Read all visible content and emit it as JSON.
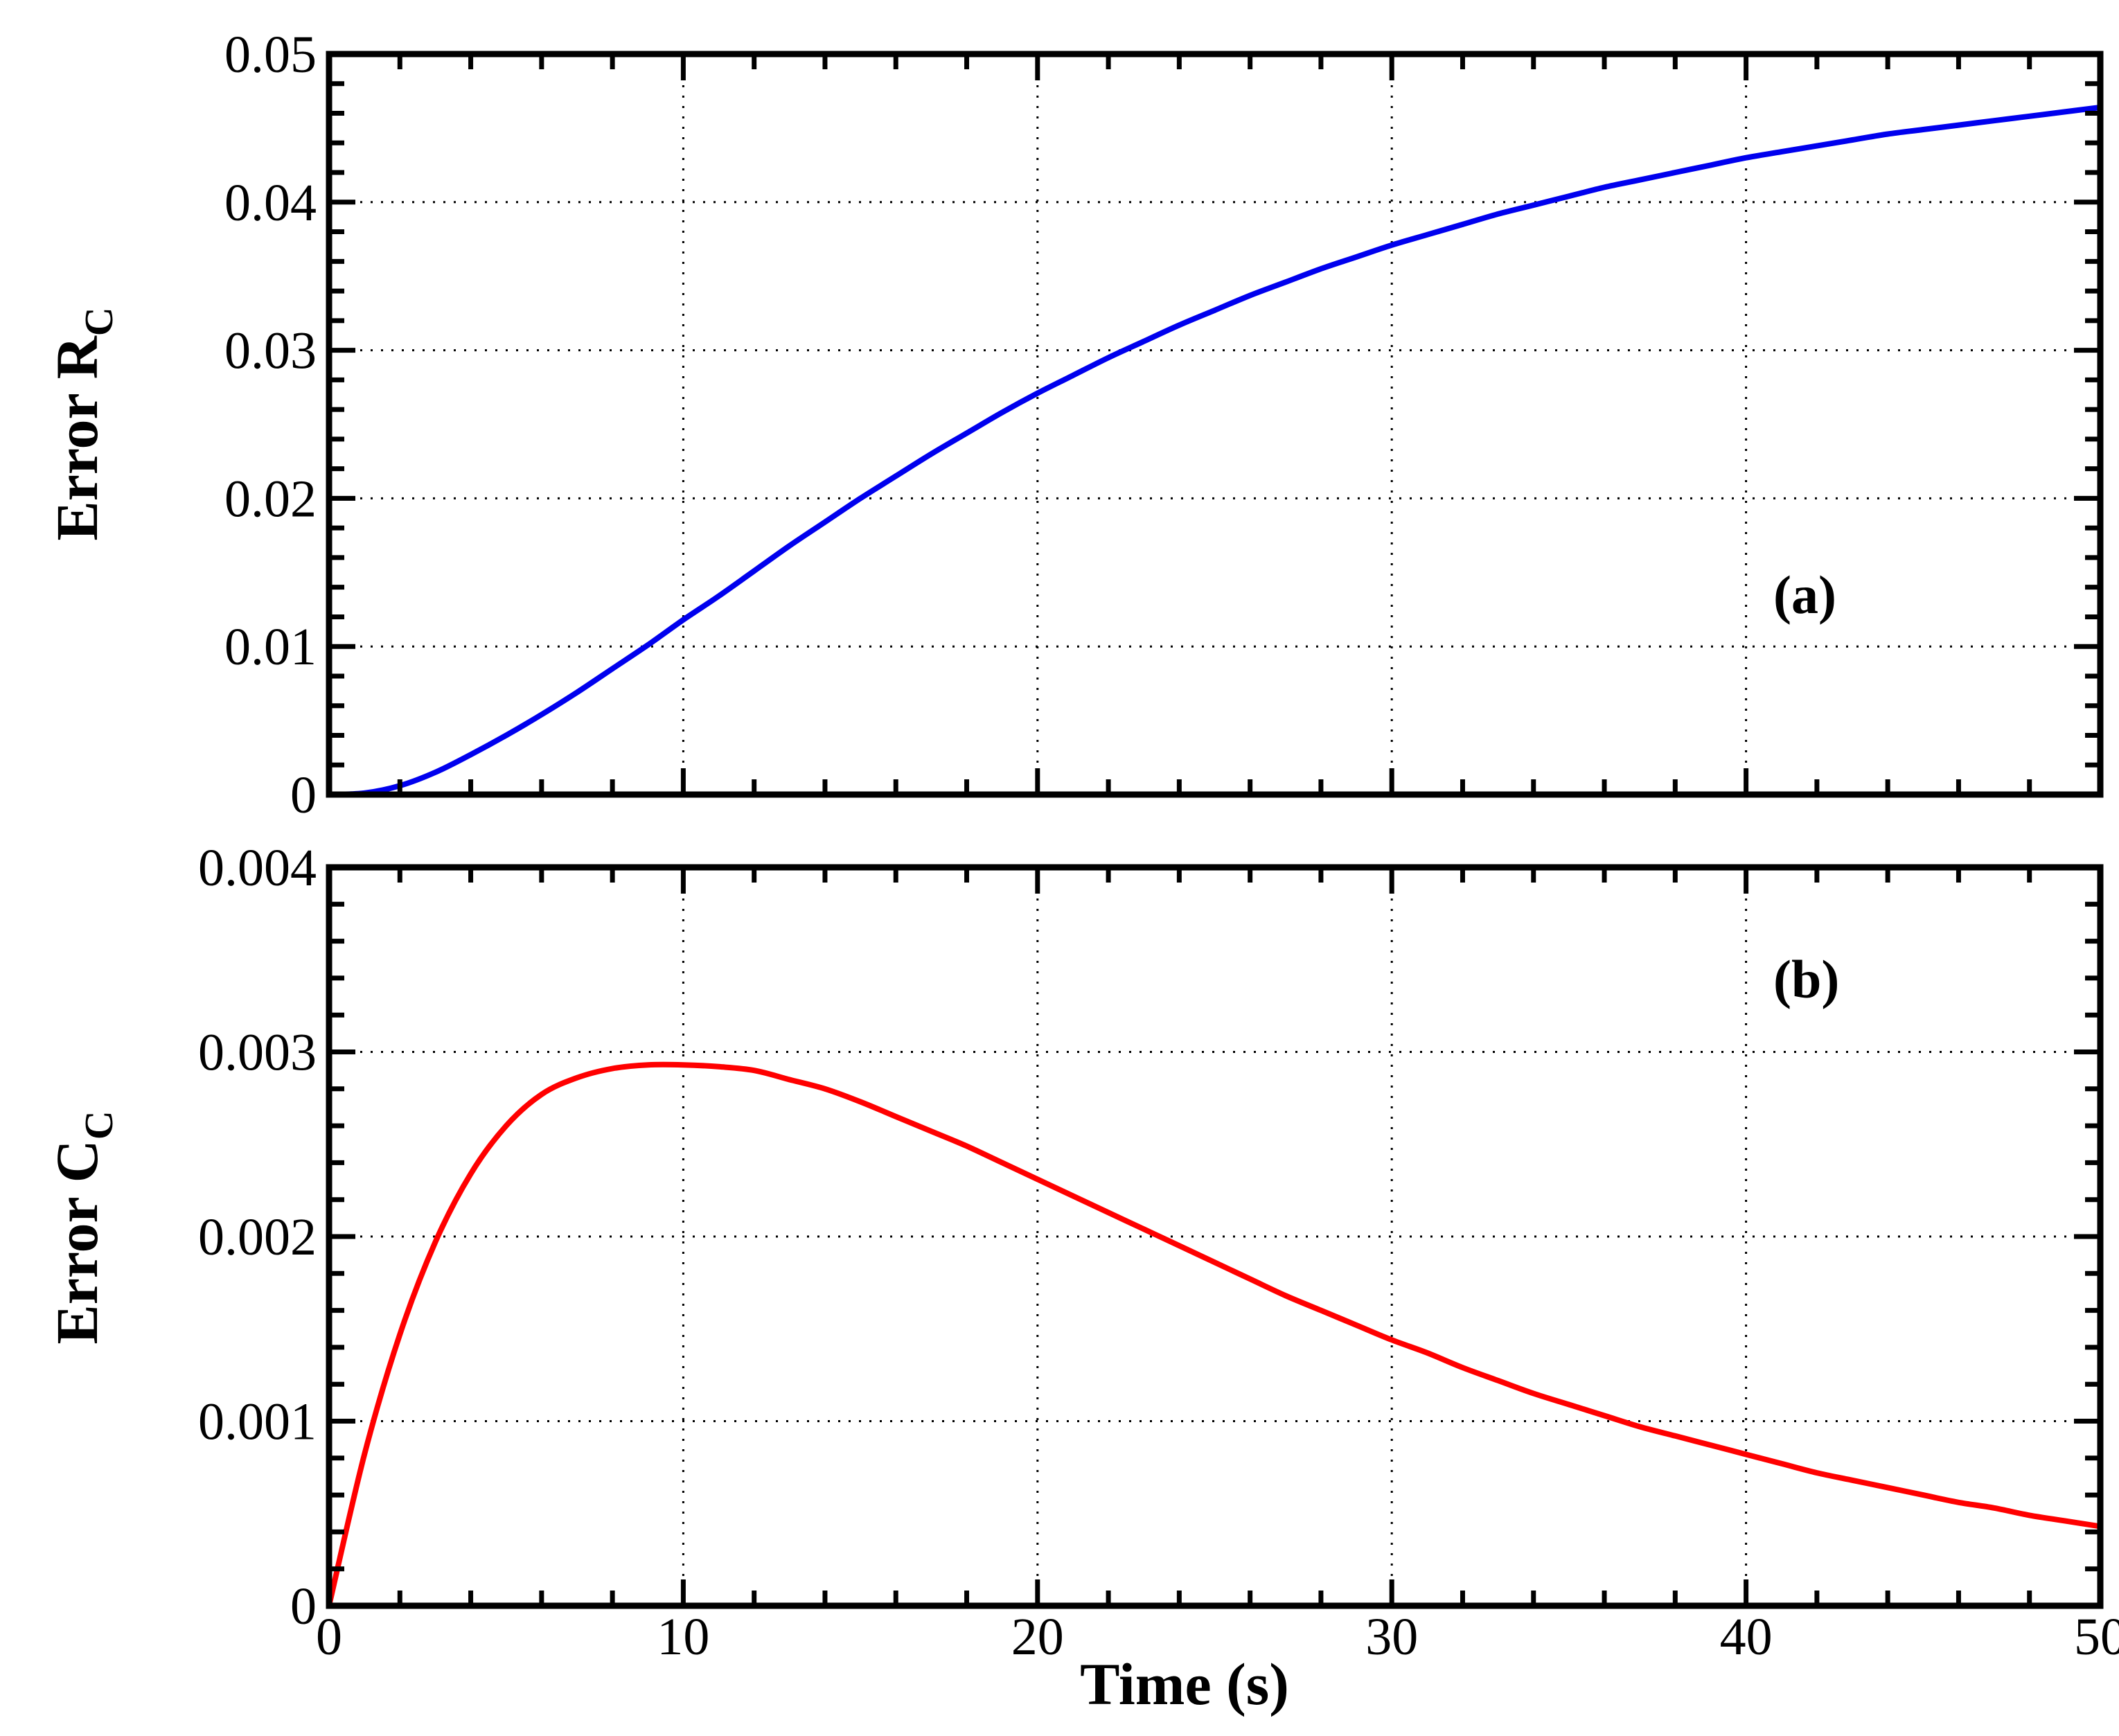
{
  "chart_data": [
    {
      "panel": "(a)",
      "type": "line",
      "xlabel": "",
      "ylabel": "Error R",
      "ylabel_subscript": "C",
      "xlim": [
        0,
        50
      ],
      "ylim": [
        0,
        0.05
      ],
      "xticks": [
        0,
        10,
        20,
        30,
        40,
        50
      ],
      "yticks": [
        0,
        0.01,
        0.02,
        0.03,
        0.04,
        0.05
      ],
      "ytick_labels": [
        "0",
        "0.01",
        "0.02",
        "0.03",
        "0.04",
        "0.05"
      ],
      "xtick_labels_shown": false,
      "grid": true,
      "series": [
        {
          "name": "R_C error",
          "color": "#0000ee",
          "x": [
            0,
            1,
            2,
            3,
            4,
            5,
            6,
            7,
            8,
            9,
            10,
            11,
            12,
            13,
            14,
            15,
            16,
            17,
            18,
            19,
            20,
            21,
            22,
            23,
            24,
            25,
            26,
            27,
            28,
            29,
            30,
            31,
            32,
            33,
            34,
            35,
            36,
            37,
            38,
            39,
            40,
            41,
            42,
            43,
            44,
            45,
            46,
            47,
            48,
            49,
            50
          ],
          "y": [
            0,
            0.0001,
            0.0006,
            0.0015,
            0.0027,
            0.004,
            0.0054,
            0.0069,
            0.0085,
            0.0101,
            0.0118,
            0.0134,
            0.0151,
            0.0168,
            0.0184,
            0.02,
            0.0215,
            0.023,
            0.0244,
            0.0258,
            0.0271,
            0.0283,
            0.0295,
            0.0306,
            0.0317,
            0.0327,
            0.0337,
            0.0346,
            0.0355,
            0.0363,
            0.0371,
            0.0378,
            0.0385,
            0.0392,
            0.0398,
            0.0404,
            0.041,
            0.0415,
            0.042,
            0.0425,
            0.043,
            0.0434,
            0.0438,
            0.0442,
            0.0446,
            0.0449,
            0.0452,
            0.0455,
            0.0458,
            0.0461,
            0.0464
          ]
        }
      ]
    },
    {
      "panel": "(b)",
      "type": "line",
      "xlabel": "Time (s)",
      "ylabel": "Error C",
      "ylabel_subscript": "C",
      "xlim": [
        0,
        50
      ],
      "ylim": [
        0,
        0.004
      ],
      "xticks": [
        0,
        10,
        20,
        30,
        40,
        50
      ],
      "xtick_labels": [
        "0",
        "10",
        "20",
        "30",
        "40",
        "50"
      ],
      "yticks": [
        0,
        0.001,
        0.002,
        0.003,
        0.004
      ],
      "ytick_labels": [
        "0",
        "0.001",
        "0.002",
        "0.003",
        "0.004"
      ],
      "grid": true,
      "series": [
        {
          "name": "C_C error",
          "color": "#ff0000",
          "x": [
            0,
            1,
            2,
            3,
            4,
            5,
            6,
            7,
            8,
            9,
            10,
            11,
            12,
            13,
            14,
            15,
            16,
            17,
            18,
            19,
            20,
            21,
            22,
            23,
            24,
            25,
            26,
            27,
            28,
            29,
            30,
            31,
            32,
            33,
            34,
            35,
            36,
            37,
            38,
            39,
            40,
            41,
            42,
            43,
            44,
            45,
            46,
            47,
            48,
            49,
            50
          ],
          "y": [
            0,
            0.00082,
            0.00147,
            0.00197,
            0.00234,
            0.0026,
            0.00277,
            0.00286,
            0.00291,
            0.00293,
            0.00293,
            0.00292,
            0.0029,
            0.00285,
            0.0028,
            0.00273,
            0.00265,
            0.00257,
            0.00249,
            0.0024,
            0.00231,
            0.00222,
            0.00213,
            0.00204,
            0.00195,
            0.00186,
            0.00177,
            0.00168,
            0.0016,
            0.00152,
            0.00144,
            0.00137,
            0.00129,
            0.00122,
            0.00115,
            0.00109,
            0.00103,
            0.00097,
            0.00092,
            0.00087,
            0.00082,
            0.00077,
            0.00072,
            0.00068,
            0.00064,
            0.0006,
            0.00056,
            0.00053,
            0.00049,
            0.00046,
            0.00043
          ]
        }
      ]
    }
  ]
}
